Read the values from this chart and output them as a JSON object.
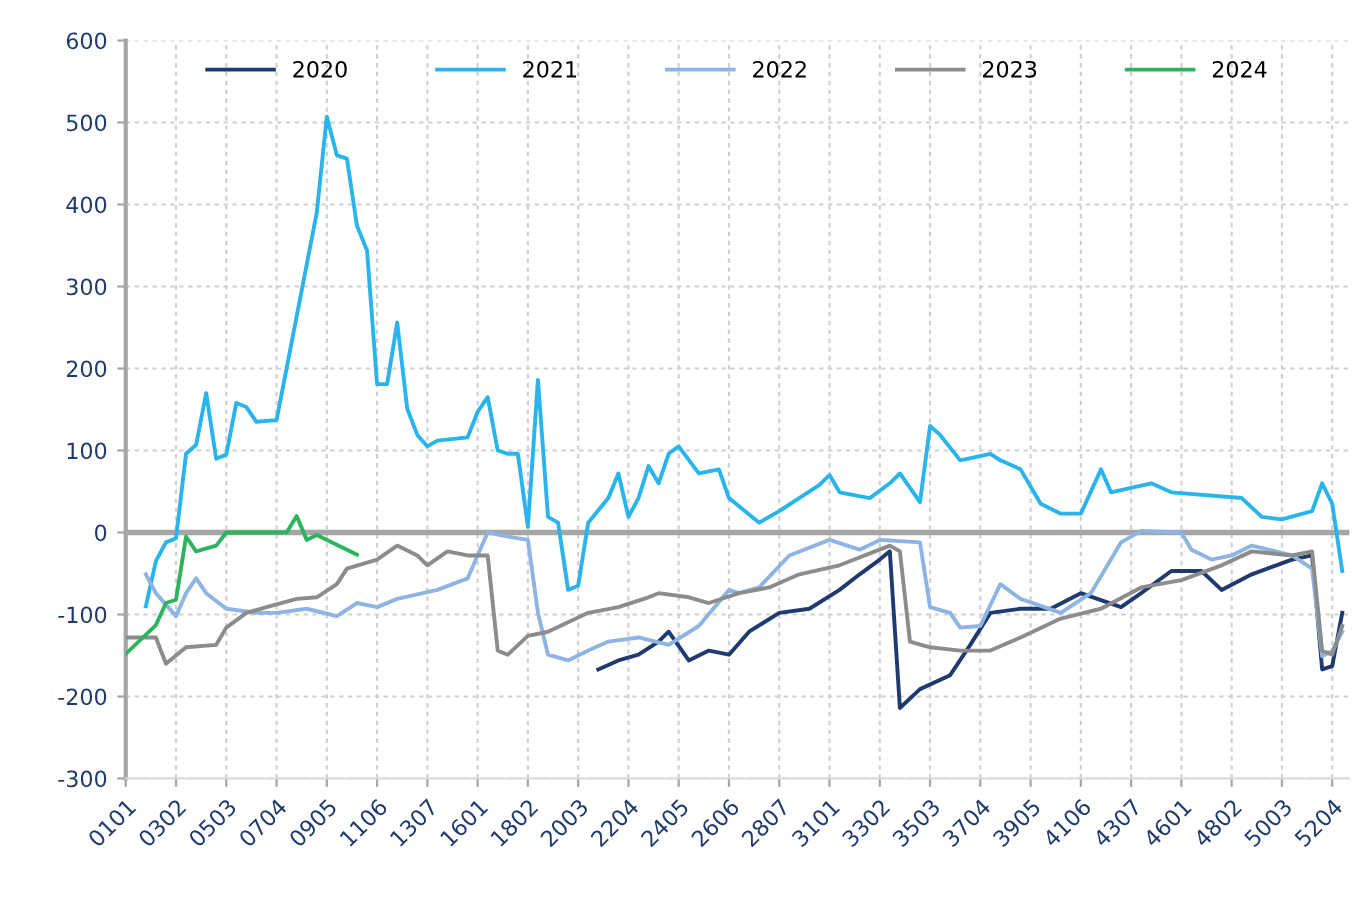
{
  "chart_data": {
    "type": "line",
    "categories": [
      "0101",
      null,
      null,
      null,
      null,
      "0302",
      null,
      null,
      null,
      null,
      "0503",
      null,
      null,
      null,
      null,
      "0704",
      null,
      null,
      null,
      null,
      "0905",
      null,
      null,
      null,
      null,
      "1106",
      null,
      null,
      null,
      null,
      "1307",
      null,
      null,
      null,
      null,
      "1601",
      null,
      null,
      null,
      null,
      "1802",
      null,
      null,
      null,
      null,
      "2003",
      null,
      null,
      null,
      null,
      "2204",
      null,
      null,
      null,
      null,
      "2405",
      null,
      null,
      null,
      null,
      "2606",
      null,
      null,
      null,
      null,
      "2807",
      null,
      null,
      null,
      null,
      "3101",
      null,
      null,
      null,
      null,
      "3302",
      null,
      null,
      null,
      null,
      "3503",
      null,
      null,
      null,
      null,
      "3704",
      null,
      null,
      null,
      null,
      "3905",
      null,
      null,
      null,
      null,
      "4106",
      null,
      null,
      null,
      null,
      "4307",
      null,
      null,
      null,
      null,
      "4601",
      null,
      null,
      null,
      null,
      "4802",
      null,
      null,
      null,
      null,
      "5003",
      null,
      null,
      null,
      null,
      "5204",
      null
    ],
    "ylim": [
      -300,
      600
    ],
    "yticks": [
      -300,
      -200,
      -100,
      0,
      100,
      200,
      300,
      400,
      500,
      600
    ],
    "grid": true,
    "legend": "top",
    "marker": "none",
    "line_style": "solid",
    "ref_lines": [
      {
        "axis": "y",
        "value": 0,
        "color": "#a6a6a6"
      }
    ],
    "series": [
      {
        "name": "2020",
        "color": "#1f3a6e",
        "values": [
          null,
          null,
          null,
          null,
          null,
          null,
          null,
          null,
          null,
          null,
          null,
          null,
          null,
          null,
          null,
          null,
          null,
          null,
          null,
          null,
          null,
          null,
          null,
          null,
          null,
          null,
          null,
          null,
          null,
          null,
          null,
          null,
          null,
          null,
          null,
          null,
          null,
          null,
          null,
          null,
          null,
          null,
          null,
          null,
          null,
          null,
          null,
          -167,
          null,
          -156,
          null,
          -149,
          null,
          -133,
          -121,
          null,
          -156,
          null,
          -144,
          null,
          -149,
          null,
          -121,
          null,
          null,
          -98,
          null,
          null,
          -93,
          null,
          null,
          -70,
          null,
          -51,
          null,
          -33,
          -23,
          -214,
          null,
          -191,
          null,
          null,
          -174,
          null,
          -137,
          null,
          -98,
          null,
          null,
          -93,
          null,
          null,
          -93,
          null,
          null,
          -74,
          null,
          null,
          null,
          -91,
          null,
          -74,
          null,
          null,
          -47,
          null,
          null,
          -47,
          null,
          -70,
          null,
          null,
          -51,
          null,
          null,
          null,
          -33,
          null,
          -28,
          -167,
          -163,
          -98
        ]
      },
      {
        "name": "2021",
        "color": "#2ab4ec",
        "values": [
          null,
          null,
          -90,
          -35,
          -12,
          -7,
          96,
          107,
          170,
          90,
          95,
          158,
          153,
          135,
          null,
          137,
          null,
          null,
          null,
          390,
          507,
          460,
          456,
          374,
          344,
          181,
          181,
          256,
          151,
          119,
          105,
          112,
          null,
          null,
          116,
          147,
          165,
          100,
          96,
          96,
          7,
          186,
          19,
          12,
          -70,
          -65,
          12,
          null,
          42,
          72,
          19,
          42,
          81,
          60,
          96,
          105,
          null,
          72,
          null,
          77,
          42,
          null,
          null,
          12,
          null,
          26,
          null,
          null,
          null,
          58,
          70,
          49,
          null,
          null,
          42,
          null,
          60,
          72,
          null,
          37,
          130,
          119,
          null,
          88,
          null,
          null,
          96,
          88,
          null,
          77,
          null,
          35,
          null,
          23,
          null,
          23,
          null,
          77,
          49,
          null,
          null,
          null,
          60,
          null,
          49,
          null,
          null,
          null,
          null,
          null,
          null,
          42,
          null,
          19,
          null,
          16,
          null,
          null,
          26,
          60,
          35,
          -47
        ]
      },
      {
        "name": "2022",
        "color": "#8eb4e3",
        "values": [
          null,
          null,
          -51,
          -74,
          null,
          -102,
          -74,
          -56,
          -74,
          null,
          -93,
          null,
          null,
          -98,
          null,
          -98,
          null,
          null,
          -93,
          null,
          null,
          -102,
          null,
          -86,
          null,
          -91,
          null,
          -81,
          null,
          null,
          null,
          -70,
          null,
          null,
          -56,
          null,
          0,
          null,
          -5,
          null,
          -9,
          -98,
          -149,
          null,
          -156,
          null,
          -144,
          null,
          -133,
          null,
          null,
          -128,
          null,
          null,
          -137,
          null,
          null,
          -114,
          null,
          null,
          -70,
          -74,
          null,
          -67,
          null,
          null,
          -28,
          null,
          null,
          null,
          -9,
          null,
          null,
          -21,
          null,
          -9,
          null,
          null,
          null,
          -12,
          -91,
          null,
          -98,
          -116,
          null,
          -114,
          null,
          -63,
          null,
          -81,
          null,
          null,
          null,
          -98,
          null,
          null,
          -74,
          null,
          null,
          -12,
          null,
          2,
          null,
          null,
          null,
          0,
          -21,
          null,
          -33,
          null,
          -28,
          null,
          -16,
          null,
          null,
          null,
          -28,
          null,
          -44,
          -151,
          -144,
          -121
        ]
      },
      {
        "name": "2023",
        "color": "#8c8c8c",
        "values": [
          -128,
          null,
          null,
          -128,
          -160,
          null,
          -140,
          null,
          null,
          -137,
          -116,
          null,
          -98,
          null,
          -91,
          null,
          null,
          -81,
          null,
          -79,
          null,
          -63,
          -44,
          null,
          null,
          -33,
          null,
          -16,
          null,
          -28,
          -40,
          null,
          -23,
          null,
          -28,
          null,
          -28,
          -144,
          -149,
          null,
          -126,
          null,
          -121,
          null,
          null,
          null,
          -98,
          null,
          null,
          -91,
          null,
          null,
          -79,
          -74,
          null,
          null,
          -79,
          null,
          -86,
          null,
          null,
          -74,
          null,
          null,
          -67,
          null,
          null,
          -51,
          null,
          null,
          null,
          -40,
          null,
          null,
          null,
          null,
          -16,
          -23,
          -133,
          null,
          -140,
          null,
          null,
          -144,
          null,
          null,
          -144,
          null,
          null,
          -128,
          null,
          null,
          null,
          -105,
          null,
          null,
          null,
          -93,
          null,
          null,
          null,
          -67,
          null,
          null,
          null,
          -58,
          null,
          null,
          null,
          -40,
          null,
          null,
          -23,
          null,
          null,
          null,
          -28,
          null,
          -23,
          -144,
          -149,
          -114
        ]
      },
      {
        "name": "2024",
        "color": "#2eb35f",
        "values": [
          -148,
          null,
          null,
          -113,
          -86,
          -82,
          -5,
          -23,
          null,
          -16,
          0,
          null,
          null,
          null,
          null,
          null,
          0,
          20,
          -9,
          -3,
          null,
          null,
          null,
          -27,
          null,
          null,
          null,
          null,
          null,
          null,
          null,
          null,
          null,
          null,
          null,
          null,
          null,
          null,
          null,
          null,
          null,
          null,
          null,
          null,
          null,
          null,
          null,
          null,
          null,
          null,
          null,
          null,
          null,
          null,
          null,
          null,
          null,
          null,
          null,
          null,
          null,
          null,
          null,
          null,
          null,
          null,
          null,
          null,
          null,
          null,
          null,
          null,
          null,
          null,
          null,
          null,
          null,
          null,
          null,
          null,
          null,
          null,
          null,
          null,
          null,
          null,
          null,
          null,
          null,
          null,
          null,
          null,
          null,
          null,
          null,
          null,
          null,
          null,
          null,
          null,
          null,
          null,
          null,
          null,
          null,
          null,
          null,
          null,
          null,
          null,
          null,
          null,
          null,
          null,
          null,
          null,
          null,
          null,
          null,
          null,
          null,
          null
        ]
      }
    ]
  }
}
